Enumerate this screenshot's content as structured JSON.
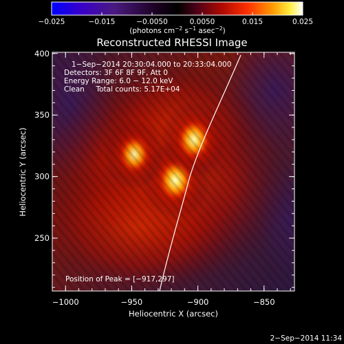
{
  "colorbar": {
    "ticks": [
      "−0.025",
      "−0.015",
      "−0.0050",
      "0.0050",
      "0.015",
      "0.025"
    ],
    "unit_label": "(photons cm",
    "unit_exp1": "−2",
    "unit_mid": " s",
    "unit_exp2": "−1",
    "unit_end": " asec",
    "unit_exp3": "−2",
    "unit_close": ")",
    "colors": [
      "#0000ff",
      "#4a00b0",
      "#3a0050",
      "#000000",
      "#3a0030",
      "#8a0010",
      "#d01000",
      "#ff4000",
      "#ff9000",
      "#ffd000",
      "#ffff80",
      "#ffffff"
    ]
  },
  "title": "Reconstructed RHESSI Image",
  "info": {
    "time_range": "1−Sep−2014 20:30:04.000 to 20:33:04.000",
    "detectors": "Detectors: 3F 6F 8F 9F, Att 0",
    "energy": "Energy Range: 6.0 − 12.0 keV",
    "clean": "Clean     Total counts: 5.17E+04"
  },
  "peak": "Position of Peak = [−917,297]",
  "x_axis": {
    "label": "Heliocentric X (arcsec)",
    "ticks": [
      "−1000",
      "−950",
      "−900",
      "−850"
    ],
    "values": [
      -1000,
      -950,
      -900,
      -850
    ],
    "range": [
      -1010,
      -827
    ]
  },
  "y_axis": {
    "label": "Heliocentric Y (arcsec)",
    "ticks": [
      "250",
      "300",
      "350",
      "400"
    ],
    "values": [
      250,
      300,
      350,
      400
    ],
    "range": [
      207,
      401
    ]
  },
  "sources": [
    {
      "x": -917,
      "y": 297,
      "intensity": 1.0
    },
    {
      "x": -903,
      "y": 330,
      "intensity": 0.9
    },
    {
      "x": -948,
      "y": 318,
      "intensity": 0.7
    }
  ],
  "timestamp": "2−Sep−2014 11:34"
}
